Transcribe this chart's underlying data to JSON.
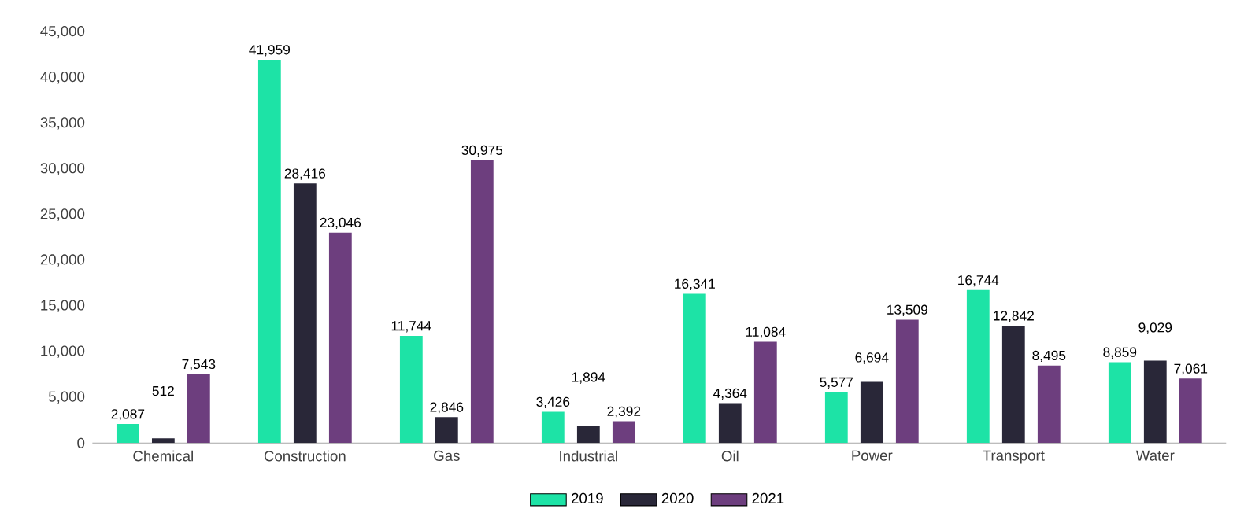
{
  "chart_data": {
    "type": "bar",
    "categories": [
      "Chemical",
      "Construction",
      "Gas",
      "Industrial",
      "Oil",
      "Power",
      "Transport",
      "Water"
    ],
    "series": [
      {
        "name": "2019",
        "color": "#1de3a6",
        "values": [
          2087,
          41959,
          11744,
          3426,
          16341,
          5577,
          16744,
          8859
        ],
        "value_labels": [
          "2,087",
          "41,959",
          "11,744",
          "3,426",
          "16,341",
          "5,577",
          "16,744",
          "8,859"
        ]
      },
      {
        "name": "2020",
        "color": "#292738",
        "values": [
          512,
          28416,
          2846,
          1894,
          4364,
          6694,
          12842,
          9029
        ],
        "value_labels": [
          "512",
          "28,416",
          "2,846",
          "1,894",
          "4,364",
          "6,694",
          "12,842",
          "9,029"
        ]
      },
      {
        "name": "2021",
        "color": "#6d3e7e",
        "values": [
          7543,
          23046,
          30975,
          2392,
          11084,
          13509,
          8495,
          7061
        ],
        "value_labels": [
          "7,543",
          "23,046",
          "30,975",
          "2,392",
          "11,084",
          "13,509",
          "8,495",
          "7,061"
        ]
      }
    ],
    "ylim": [
      0,
      45000
    ],
    "yticks": [
      {
        "value": 0,
        "label": "0"
      },
      {
        "value": 5000,
        "label": "5,000"
      },
      {
        "value": 10000,
        "label": "10,000"
      },
      {
        "value": 15000,
        "label": "15,000"
      },
      {
        "value": 20000,
        "label": "20,000"
      },
      {
        "value": 25000,
        "label": "25,000"
      },
      {
        "value": 30000,
        "label": "30,000"
      },
      {
        "value": 35000,
        "label": "35,000"
      },
      {
        "value": 40000,
        "label": "40,000"
      },
      {
        "value": 45000,
        "label": "45,000"
      }
    ],
    "legend": "bottom",
    "grid": false
  }
}
